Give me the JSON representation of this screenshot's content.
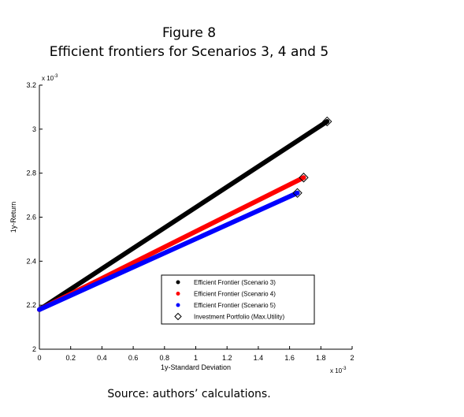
{
  "figure": {
    "title": "Figure 8",
    "subtitle": "Efficient frontiers for Scenarios 3, 4 and 5",
    "source": "Source: authors’ calculations."
  },
  "chart_data": {
    "type": "line",
    "xlabel": "1y-Standard Deviation",
    "ylabel": "1y-Return",
    "x_multiplier": "x 10^-3",
    "y_multiplier": "x 10^-3",
    "xlim": [
      0,
      2
    ],
    "ylim": [
      2,
      3.2
    ],
    "x_ticks": [
      "0",
      "0.2",
      "0.4",
      "0.6",
      "0.8",
      "1",
      "1.2",
      "1.4",
      "1.6",
      "1.8",
      "2"
    ],
    "y_ticks": [
      "2",
      "2.2",
      "2.4",
      "2.6",
      "2.8",
      "3",
      "3.2"
    ],
    "grid": false,
    "legend_position": "bottom-right",
    "series": [
      {
        "name": "Efficient Frontier (Scenario 3)",
        "color": "#000000",
        "x": [
          0,
          1.84
        ],
        "y": [
          2.18,
          3.035
        ]
      },
      {
        "name": "Efficient Frontier (Scenario 4)",
        "color": "#ff0000",
        "x": [
          0,
          1.69
        ],
        "y": [
          2.18,
          2.78
        ]
      },
      {
        "name": "Efficient Frontier (Scenario 5)",
        "color": "#0000ff",
        "x": [
          0,
          1.65
        ],
        "y": [
          2.18,
          2.71
        ]
      }
    ],
    "markers": {
      "name": "Investment Portfolio (Max.Utility)",
      "symbol": "diamond",
      "points": [
        {
          "x": 1.84,
          "y": 3.035
        },
        {
          "x": 1.69,
          "y": 2.78
        },
        {
          "x": 1.65,
          "y": 2.71
        }
      ]
    }
  }
}
